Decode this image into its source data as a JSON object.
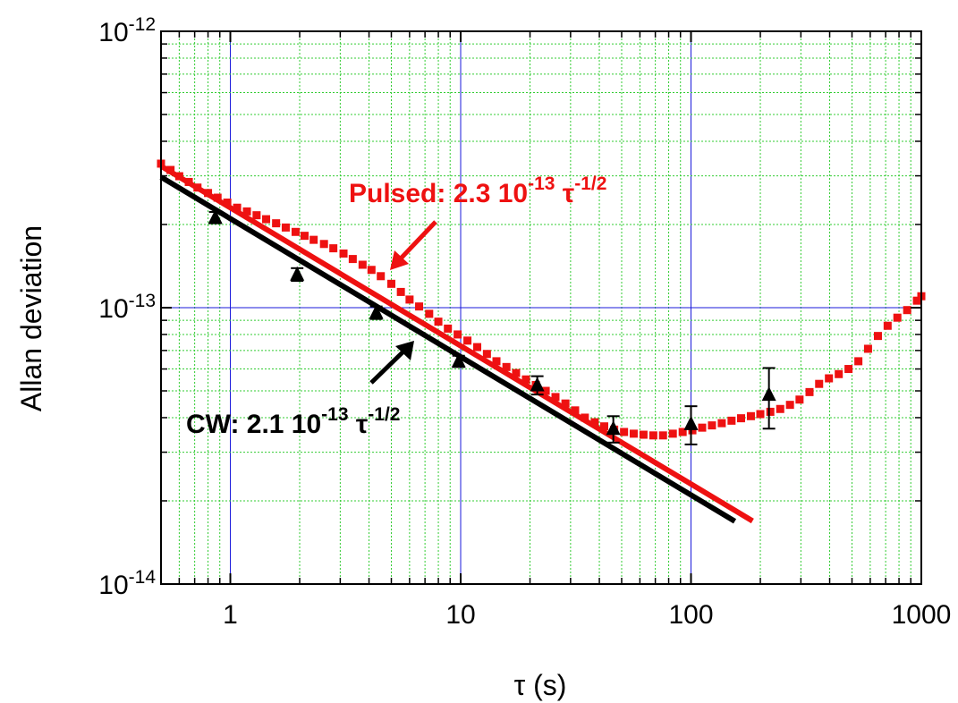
{
  "chart_data": {
    "type": "scatter",
    "xlabel": "τ (s)",
    "ylabel": "Allan deviation",
    "x_scale": "log",
    "y_scale": "log",
    "xlim": [
      0.5,
      1000
    ],
    "ylim": [
      1e-14,
      1e-12
    ],
    "grid": true,
    "x_ticks": [
      {
        "value": 1,
        "label": "1"
      },
      {
        "value": 10,
        "label": "10"
      },
      {
        "value": 100,
        "label": "100"
      },
      {
        "value": 1000,
        "label": "1000"
      }
    ],
    "y_ticks": [
      {
        "value": 1e-14,
        "base": "10",
        "exp": "-14"
      },
      {
        "value": 1e-13,
        "base": "10",
        "exp": "-13"
      },
      {
        "value": 1e-12,
        "base": "10",
        "exp": "-12"
      }
    ],
    "colors": {
      "pulsed": "#ee1111",
      "cw": "#000000",
      "grid_major": "#1a1adb",
      "grid_minor": "#33cc33"
    },
    "series": [
      {
        "key": "pulsed",
        "marker": "square",
        "points": [
          [
            0.5,
            3.32e-13
          ],
          [
            0.55,
            3.15e-13
          ],
          [
            0.6,
            2.99e-13
          ],
          [
            0.66,
            2.85e-13
          ],
          [
            0.72,
            2.72e-13
          ],
          [
            0.8,
            2.6e-13
          ],
          [
            0.88,
            2.5e-13
          ],
          [
            0.97,
            2.4e-13
          ],
          [
            1.07,
            2.3e-13
          ],
          [
            1.18,
            2.23e-13
          ],
          [
            1.3,
            2.16e-13
          ],
          [
            1.43,
            2.09e-13
          ],
          [
            1.58,
            2.02e-13
          ],
          [
            1.74,
            1.95e-13
          ],
          [
            1.92,
            1.88e-13
          ],
          [
            2.1,
            1.82e-13
          ],
          [
            2.3,
            1.76e-13
          ],
          [
            2.55,
            1.7e-13
          ],
          [
            2.8,
            1.64e-13
          ],
          [
            3.1,
            1.57e-13
          ],
          [
            3.4,
            1.5e-13
          ],
          [
            3.75,
            1.43e-13
          ],
          [
            4.1,
            1.37e-13
          ],
          [
            4.5,
            1.3e-13
          ],
          [
            5.0,
            1.22e-13
          ],
          [
            5.5,
            1.14e-13
          ],
          [
            6.0,
            1.07e-13
          ],
          [
            6.6,
            1.01e-13
          ],
          [
            7.3,
            9.5e-14
          ],
          [
            8.0,
            8.9e-14
          ],
          [
            8.8,
            8.4e-14
          ],
          [
            9.7,
            8e-14
          ],
          [
            10.7,
            7.6e-14
          ],
          [
            11.8,
            7.2e-14
          ],
          [
            13.0,
            6.8e-14
          ],
          [
            14.3,
            6.4e-14
          ],
          [
            15.8,
            6.1e-14
          ],
          [
            17.4,
            5.8e-14
          ],
          [
            19.2,
            5.5e-14
          ],
          [
            21.2,
            5.25e-14
          ],
          [
            23.4,
            5e-14
          ],
          [
            25.8,
            4.75e-14
          ],
          [
            28.5,
            4.5e-14
          ],
          [
            31.4,
            4.25e-14
          ],
          [
            34.6,
            4e-14
          ],
          [
            38.2,
            3.85e-14
          ],
          [
            42,
            3.72e-14
          ],
          [
            46.4,
            3.62e-14
          ],
          [
            51.2,
            3.55e-14
          ],
          [
            56.4,
            3.5e-14
          ],
          [
            62.2,
            3.47e-14
          ],
          [
            68.6,
            3.45e-14
          ],
          [
            75.6,
            3.45e-14
          ],
          [
            83.4,
            3.5e-14
          ],
          [
            92,
            3.55e-14
          ],
          [
            101.4,
            3.6e-14
          ],
          [
            111.8,
            3.68e-14
          ],
          [
            123.3,
            3.75e-14
          ],
          [
            136,
            3.82e-14
          ],
          [
            150,
            3.9e-14
          ],
          [
            165,
            3.98e-14
          ],
          [
            182,
            4.05e-14
          ],
          [
            200,
            4.12e-14
          ],
          [
            221,
            4.2e-14
          ],
          [
            244,
            4.3e-14
          ],
          [
            269,
            4.45e-14
          ],
          [
            296,
            4.65e-14
          ],
          [
            327,
            4.95e-14
          ],
          [
            360,
            5.3e-14
          ],
          [
            397,
            5.55e-14
          ],
          [
            438,
            5.75e-14
          ],
          [
            483,
            6e-14
          ],
          [
            533,
            6.4e-14
          ],
          [
            587,
            7.1e-14
          ],
          [
            648,
            7.9e-14
          ],
          [
            714,
            8.6e-14
          ],
          [
            787,
            9.2e-14
          ],
          [
            868,
            9.8e-14
          ],
          [
            957,
            1.06e-13
          ],
          [
            1000,
            1.1e-13
          ]
        ]
      },
      {
        "key": "cw",
        "marker": "triangle",
        "points": [
          {
            "x": 0.86,
            "y": 2.12e-13,
            "err": 1e-14
          },
          {
            "x": 1.95,
            "y": 1.32e-13,
            "err": 7e-15
          },
          {
            "x": 4.3,
            "y": 9.6e-14,
            "err": 5e-15
          },
          {
            "x": 9.8,
            "y": 6.4e-14,
            "err": 3e-15
          },
          {
            "x": 21.5,
            "y": 5.25e-14,
            "err": 4e-15
          },
          {
            "x": 46,
            "y": 3.65e-14,
            "err": 4e-15
          },
          {
            "x": 100,
            "y": 3.8e-14,
            "err": 6e-15
          },
          {
            "x": 218,
            "y": 4.85e-14,
            "err": 1.2e-14
          }
        ]
      }
    ],
    "fits": [
      {
        "key": "pulsed",
        "coef": 2.3e-13,
        "exponent": -0.5,
        "x_range": [
          0.5,
          185
        ],
        "color": "#ee1111"
      },
      {
        "key": "cw",
        "coef": 2.1e-13,
        "exponent": -0.5,
        "x_range": [
          0.5,
          155
        ],
        "color": "#000000"
      }
    ],
    "annotations": [
      {
        "key": "pulsed",
        "prefix": "Pulsed: 2.3 10",
        "exp1": "-13",
        "tau": " τ",
        "exp2": "-1/2",
        "color": "#ee1111"
      },
      {
        "key": "cw",
        "prefix": "CW: 2.1 10",
        "exp1": "-13",
        "tau": " τ",
        "exp2": "-1/2",
        "color": "#000000"
      }
    ]
  }
}
